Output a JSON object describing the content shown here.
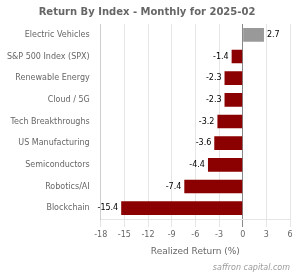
{
  "chart_data": {
    "type": "bar",
    "orientation": "horizontal",
    "title": "Return By Index - Monthly for 2025-02",
    "xlabel": "Realized Return (%)",
    "annotations": [
      "saffron capital.com"
    ],
    "categories": [
      "Blockchain",
      "Robotics/AI",
      "Semiconductors",
      "US Manufacturing",
      "Tech Breakthroughs",
      "Cloud / 5G",
      "Renewable Energy",
      "S&P 500 Index (SPX)",
      "Electric Vehicles"
    ],
    "values": [
      -15.4,
      -7.4,
      -4.4,
      -3.6,
      -3.2,
      -2.3,
      -2.3,
      -1.4,
      2.7
    ],
    "colors": [
      "#8B0000",
      "#8B0000",
      "#8B0000",
      "#8B0000",
      "#8B0000",
      "#8B0000",
      "#8B0000",
      "#8B0000",
      "#999999"
    ],
    "xlim": [
      -18,
      6
    ],
    "xticks": [
      -18,
      -15,
      -12,
      -9,
      -6,
      -3,
      0,
      3,
      6
    ],
    "grid": true,
    "data_labels": true
  }
}
